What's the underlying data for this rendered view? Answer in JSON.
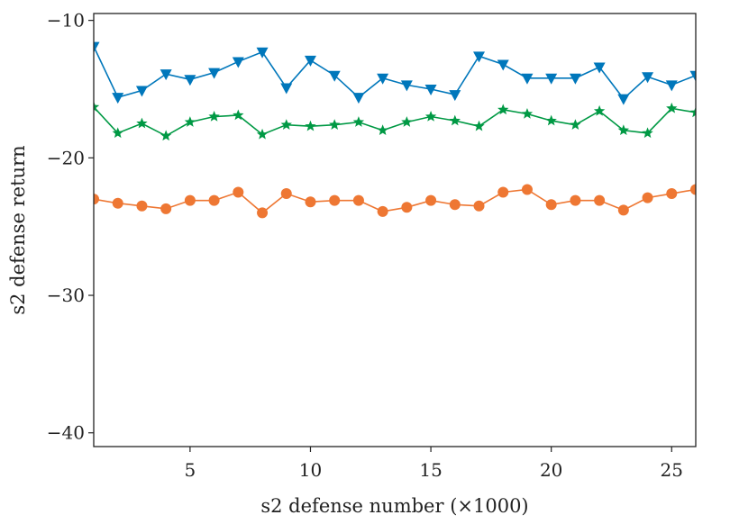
{
  "chart_data": {
    "type": "line",
    "title": "",
    "xlabel": "s2 defense number (×1000)",
    "ylabel": "s2 defense return",
    "xlim": [
      1,
      26
    ],
    "ylim": [
      -41,
      -9.5
    ],
    "xticks": [
      5,
      10,
      15,
      20,
      25
    ],
    "yticks": [
      -10,
      -20,
      -30,
      -40
    ],
    "xtick_labels": [
      "5",
      "10",
      "15",
      "20",
      "25"
    ],
    "ytick_labels": [
      "−10",
      "−20",
      "−30",
      "−40"
    ],
    "grid": false,
    "legend": "none",
    "x": [
      1,
      2,
      3,
      4,
      5,
      6,
      7,
      8,
      9,
      10,
      11,
      12,
      13,
      14,
      15,
      16,
      17,
      18,
      19,
      20,
      21,
      22,
      23,
      24,
      25,
      26
    ],
    "series": [
      {
        "marker": "triangle-down",
        "color": "#0077bb",
        "values": [
          -11.9,
          -15.6,
          -15.1,
          -13.9,
          -14.3,
          -13.8,
          -13.0,
          -12.3,
          -14.9,
          -12.9,
          -14.0,
          -15.6,
          -14.2,
          -14.7,
          -15.0,
          -15.4,
          -12.6,
          -13.2,
          -14.2,
          -14.2,
          -14.2,
          -13.4,
          -15.7,
          -14.1,
          -14.7,
          -14.0
        ]
      },
      {
        "marker": "star",
        "color": "#009944",
        "values": [
          -16.3,
          -18.2,
          -17.5,
          -18.4,
          -17.4,
          -17.0,
          -16.9,
          -18.3,
          -17.6,
          -17.7,
          -17.6,
          -17.4,
          -18.0,
          -17.4,
          -17.0,
          -17.3,
          -17.7,
          -16.5,
          -16.8,
          -17.3,
          -17.6,
          -16.6,
          -18.0,
          -18.2,
          -16.4,
          -16.7
        ]
      },
      {
        "marker": "circle",
        "color": "#ee7733",
        "values": [
          -23.0,
          -23.3,
          -23.5,
          -23.7,
          -23.1,
          -23.1,
          -22.5,
          -24.0,
          -22.6,
          -23.2,
          -23.1,
          -23.1,
          -23.9,
          -23.6,
          -23.1,
          -23.4,
          -23.5,
          -22.5,
          -22.3,
          -23.4,
          -23.1,
          -23.1,
          -23.8,
          -22.9,
          -22.6,
          -22.3
        ]
      }
    ]
  }
}
